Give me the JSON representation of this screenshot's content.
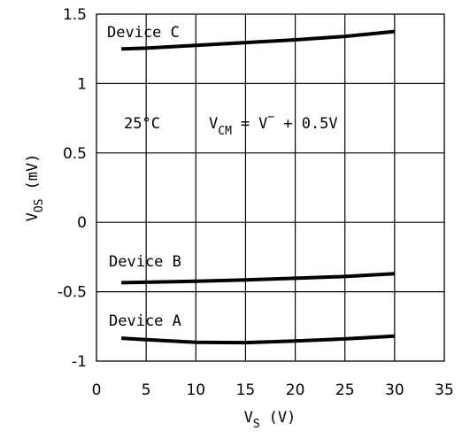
{
  "chart_data": {
    "type": "line",
    "title": "",
    "xlabel": {
      "main": "V",
      "sub": "S",
      "unit": "(V)"
    },
    "ylabel": {
      "main": "V",
      "sub": "OS",
      "unit": "(mV)"
    },
    "xlim": [
      0,
      35
    ],
    "ylim": [
      -1,
      1.5
    ],
    "x_ticks": [
      "0",
      "5",
      "10",
      "15",
      "20",
      "25",
      "30",
      "35"
    ],
    "y_ticks": [
      "-1",
      "-0.5",
      "0",
      "0.5",
      "1",
      "1.5"
    ],
    "grid": true,
    "annotations": {
      "temperature": "25°C",
      "vcm": {
        "v": "V",
        "cm": "CM",
        "eq": "=",
        "vminus": "V",
        "minus": "−",
        "rest": "+ 0.5V"
      }
    },
    "series": [
      {
        "name": "Device C",
        "x": [
          2.5,
          5,
          10,
          15,
          20,
          25,
          30
        ],
        "y": [
          1.25,
          1.255,
          1.275,
          1.295,
          1.315,
          1.34,
          1.375
        ]
      },
      {
        "name": "Device B",
        "x": [
          2.5,
          5,
          10,
          15,
          20,
          25,
          30
        ],
        "y": [
          -0.435,
          -0.432,
          -0.425,
          -0.415,
          -0.403,
          -0.39,
          -0.37
        ]
      },
      {
        "name": "Device A",
        "x": [
          2.5,
          5,
          10,
          15,
          20,
          25,
          30
        ],
        "y": [
          -0.835,
          -0.845,
          -0.865,
          -0.867,
          -0.855,
          -0.84,
          -0.82
        ]
      }
    ]
  }
}
